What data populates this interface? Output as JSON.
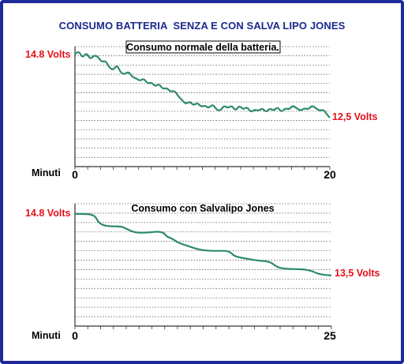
{
  "page": {
    "title": "CONSUMO BATTERIA  SENZA E CON SALVA LIPO JONES",
    "colors": {
      "border": "#1f2a9a",
      "title": "#1a2a8c",
      "callout": "#e3101a",
      "line": "#2e8a6a",
      "grid": "#666666"
    }
  },
  "chart_data": [
    {
      "type": "line",
      "title": "Consumo normale della batteria.",
      "xlabel": "Minuti",
      "x_ticks": [
        "0",
        "20"
      ],
      "xlim": [
        0,
        20
      ],
      "start_label": "14.8 Volts",
      "end_label": "12,5 Volts",
      "grid": "horizontal dotted",
      "series": [
        {
          "x": [
            0,
            0.3,
            0.6,
            0.9,
            1.2,
            1.5,
            1.8,
            2.1,
            2.4,
            2.7,
            3.0,
            3.3,
            3.6,
            3.9,
            4.2,
            4.5,
            4.8,
            5.1,
            5.4,
            5.7,
            6.0,
            6.3,
            6.6,
            6.9,
            7.2,
            7.5,
            7.8,
            8.1,
            8.4,
            8.7,
            9.0,
            9.3,
            9.6,
            9.9,
            10.2,
            10.5,
            10.8,
            11.1,
            11.4,
            11.7,
            12.0,
            12.3,
            12.6,
            12.9,
            13.2,
            13.5,
            13.8,
            14.1,
            14.4,
            14.7,
            15.0,
            15.3,
            15.6,
            15.9,
            16.2,
            16.5,
            16.8,
            17.1,
            17.4,
            17.7,
            18.0,
            18.3,
            18.6,
            18.9,
            19.2,
            19.5,
            19.8,
            20.0
          ],
          "y": [
            14.85,
            14.95,
            14.7,
            14.9,
            14.65,
            14.8,
            14.75,
            14.55,
            14.6,
            14.35,
            14.25,
            14.45,
            14.15,
            14.1,
            14.2,
            14.0,
            13.95,
            13.85,
            13.95,
            13.75,
            13.8,
            13.65,
            13.75,
            13.55,
            13.6,
            13.45,
            13.5,
            13.3,
            13.15,
            13.0,
            13.1,
            12.95,
            13.05,
            12.9,
            12.95,
            12.85,
            13.0,
            12.8,
            12.75,
            12.95,
            12.85,
            12.95,
            12.75,
            12.95,
            12.8,
            12.9,
            12.7,
            12.8,
            12.75,
            12.85,
            12.7,
            12.85,
            12.75,
            12.9,
            12.7,
            12.85,
            12.8,
            12.95,
            12.85,
            12.75,
            12.85,
            12.8,
            12.95,
            12.85,
            12.75,
            12.8,
            12.6,
            12.5
          ]
        }
      ]
    },
    {
      "type": "line",
      "title": "Consumo con Salvalipo Jones",
      "xlabel": "Minuti",
      "x_ticks": [
        "0",
        "25"
      ],
      "xlim": [
        0,
        25
      ],
      "start_label": "14.8 Volts",
      "end_label": "13,5 Volts",
      "grid": "horizontal dotted",
      "series": [
        {
          "x": [
            0,
            1.5,
            2.0,
            2.3,
            3.0,
            4.5,
            5.0,
            5.5,
            6.0,
            7.0,
            8.5,
            9.0,
            9.5,
            10.0,
            11.0,
            12.0,
            13.0,
            14.0,
            15.0,
            15.5,
            16.0,
            17.0,
            18.0,
            19.0,
            19.5,
            20.0,
            21.0,
            22.0,
            23.0,
            23.5,
            24.0,
            25.0
          ],
          "y": [
            14.8,
            14.8,
            14.75,
            14.62,
            14.55,
            14.55,
            14.5,
            14.45,
            14.42,
            14.42,
            14.45,
            14.33,
            14.3,
            14.22,
            14.15,
            14.08,
            14.05,
            14.05,
            14.05,
            13.95,
            13.92,
            13.88,
            13.85,
            13.83,
            13.75,
            13.7,
            13.68,
            13.68,
            13.65,
            13.6,
            13.57,
            13.55
          ]
        }
      ]
    }
  ]
}
